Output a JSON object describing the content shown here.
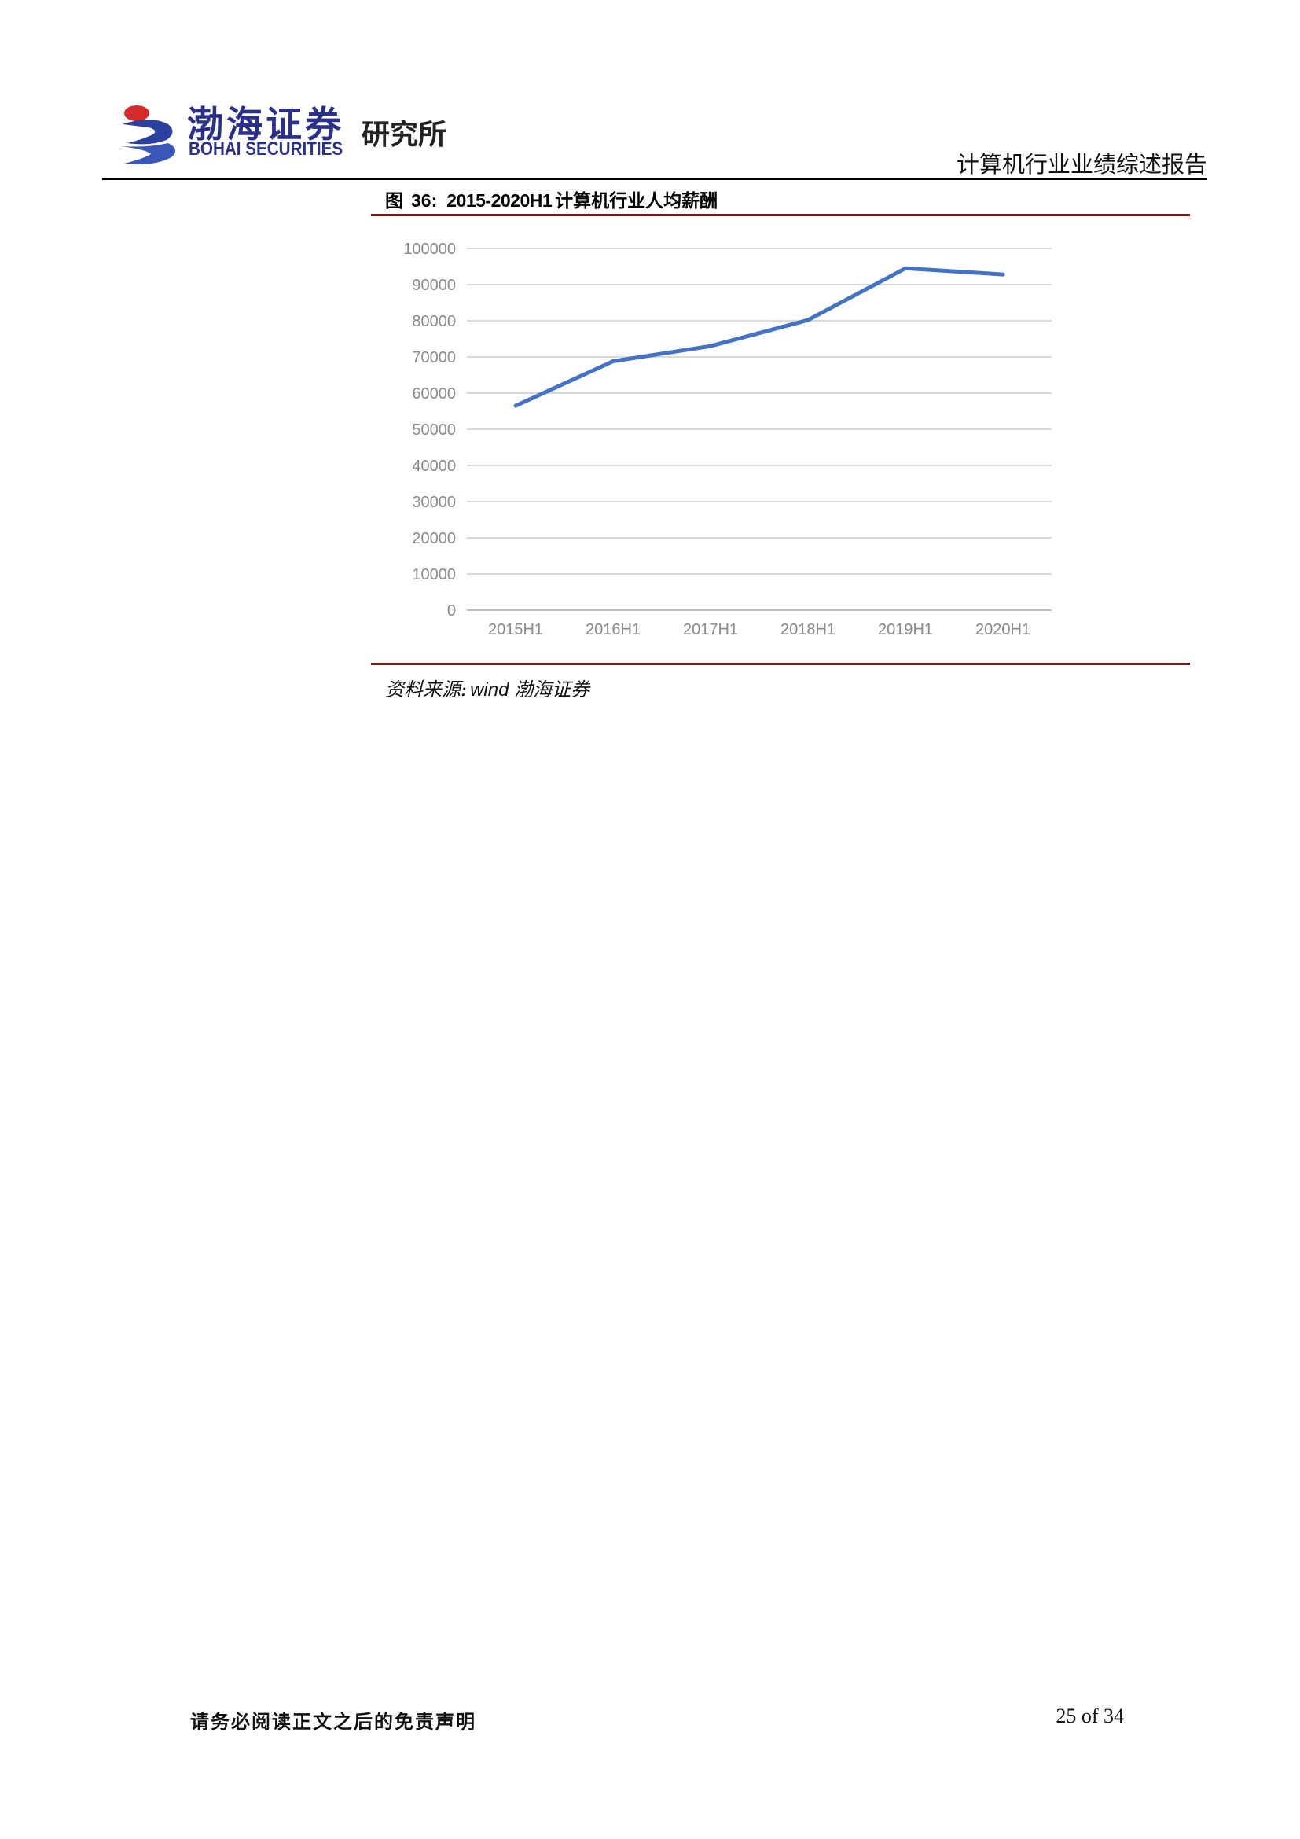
{
  "header": {
    "logo_cn": "渤海证券",
    "logo_en": "BOHAI SECURITIES",
    "department": "研究所",
    "report_title": "计算机行业业绩综述报告"
  },
  "figure": {
    "label": "图",
    "number": "36:",
    "range": "2015-2020H1",
    "caption_cn": "计算机行业人均薪酬",
    "source_label": "资料来源:",
    "source_value": "wind 渤海证券"
  },
  "chart_data": {
    "type": "line",
    "categories": [
      "2015H1",
      "2016H1",
      "2017H1",
      "2018H1",
      "2019H1",
      "2020H1"
    ],
    "series": [
      {
        "values": [
          56500,
          68800,
          73000,
          80200,
          94500,
          92800
        ],
        "color": "#4472c4"
      }
    ],
    "yticks": [
      "100000",
      "90000",
      "80000",
      "70000",
      "60000",
      "50000",
      "40000",
      "30000",
      "20000",
      "10000",
      "0"
    ],
    "ylim": [
      0,
      100000
    ],
    "grid": true,
    "legend": "none",
    "title": "",
    "xlabel": "",
    "ylabel": ""
  },
  "footer": {
    "disclaimer": "请务必阅读正文之后的免责声明",
    "page": "25 of 34"
  }
}
